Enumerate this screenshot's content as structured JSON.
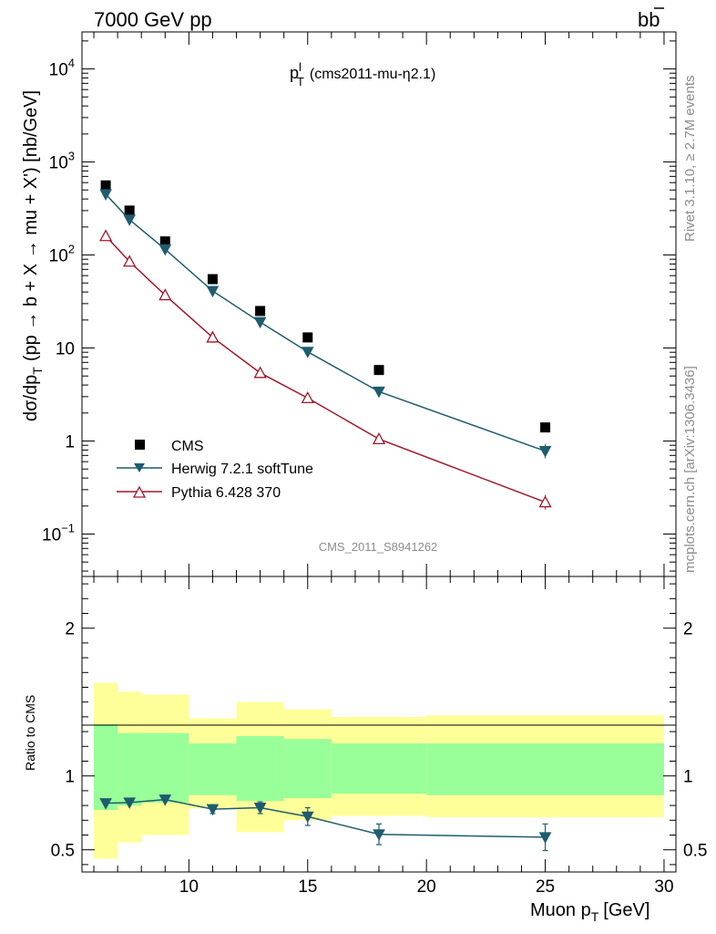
{
  "header": {
    "left": "7000 GeV pp",
    "right_main": "b",
    "right_bar": "b"
  },
  "side_labels": {
    "top": "Rivet 3.1.10, ≥ 2.7M events",
    "bottom": "mcplots.cern.ch [arXiv:1306.3436]"
  },
  "chart_data": [
    {
      "type": "scatter",
      "panel": "main",
      "title_main": "p",
      "title_sup": "l",
      "title_sub": "T",
      "title_rest": "(cms2011-mu-η2.1)",
      "watermark": "CMS_2011_S8941262",
      "ylabel_prefix": "dσ/dp",
      "ylabel_sub": "T",
      "ylabel_rest": "(pp → b + X → mu + X') [nb/GeV]",
      "yscale": "log",
      "ylim": [
        0.035,
        25000
      ],
      "xlim": [
        5.5,
        30.5
      ],
      "y_ticks": [
        {
          "v": 0.1,
          "base": "10",
          "exp": "−1"
        },
        {
          "v": 1,
          "text": "1"
        },
        {
          "v": 10,
          "text": "10"
        },
        {
          "v": 100,
          "base": "10",
          "exp": "2"
        },
        {
          "v": 1000,
          "base": "10",
          "exp": "3"
        },
        {
          "v": 10000,
          "base": "10",
          "exp": "4"
        }
      ],
      "x": [
        6.5,
        7.5,
        9,
        11,
        13,
        15,
        18,
        25
      ],
      "bin_edges": [
        6,
        7,
        8,
        10,
        12,
        14,
        16,
        20,
        30
      ],
      "series": [
        {
          "name": "CMS",
          "color": "#000000",
          "marker": "square",
          "values": [
            560,
            300,
            140,
            55,
            25,
            13,
            5.8,
            1.4
          ]
        },
        {
          "name": "Herwig 7.2.1 softTune",
          "color": "#1f5c6f",
          "marker": "triangle-down",
          "values": [
            450,
            240,
            115,
            41,
            19,
            9.1,
            3.4,
            0.78
          ]
        },
        {
          "name": "Pythia 6.428 370",
          "color": "#a01729",
          "marker": "triangle-up-open",
          "values": [
            160,
            85,
            37,
            13,
            5.4,
            2.9,
            1.05,
            0.22
          ]
        }
      ],
      "legend_position": "bottom-left"
    },
    {
      "type": "scatter",
      "panel": "ratio",
      "ylabel": "Ratio to CMS",
      "xlabel_main": "Muon p",
      "xlabel_sub": "T",
      "xlabel_unit": "[GeV]",
      "xlim": [
        5.5,
        30.5
      ],
      "ylim": [
        0.35,
        2.35
      ],
      "x_ticks": [
        10,
        15,
        20,
        25,
        30
      ],
      "y_ticks": [
        0.5,
        1,
        2
      ],
      "x": [
        6.5,
        7.5,
        9,
        11,
        13,
        15,
        18,
        25
      ],
      "bin_edges": [
        6,
        7,
        8,
        10,
        12,
        14,
        16,
        20,
        30
      ],
      "band_stat": {
        "color": "#99ff99",
        "lower": [
          0.77,
          0.8,
          0.82,
          0.87,
          0.83,
          0.85,
          0.88,
          0.87
        ],
        "upper": [
          1.35,
          1.29,
          1.29,
          1.22,
          1.27,
          1.25,
          1.22,
          1.22
        ]
      },
      "band_total": {
        "color": "#ffff99",
        "lower": [
          0.44,
          0.55,
          0.6,
          0.78,
          0.62,
          0.7,
          0.73,
          0.72
        ],
        "upper": [
          1.63,
          1.57,
          1.55,
          1.39,
          1.5,
          1.45,
          1.4,
          1.41
        ]
      },
      "series": [
        {
          "name": "Herwig 7.2.1 softTune",
          "color": "#1f5c6f",
          "marker": "triangle-down",
          "values": [
            0.815,
            0.82,
            0.84,
            0.775,
            0.785,
            0.725,
            0.605,
            0.585
          ],
          "err": [
            0.01,
            0.01,
            0.01,
            0.03,
            0.04,
            0.06,
            0.07,
            0.09
          ]
        }
      ]
    }
  ]
}
